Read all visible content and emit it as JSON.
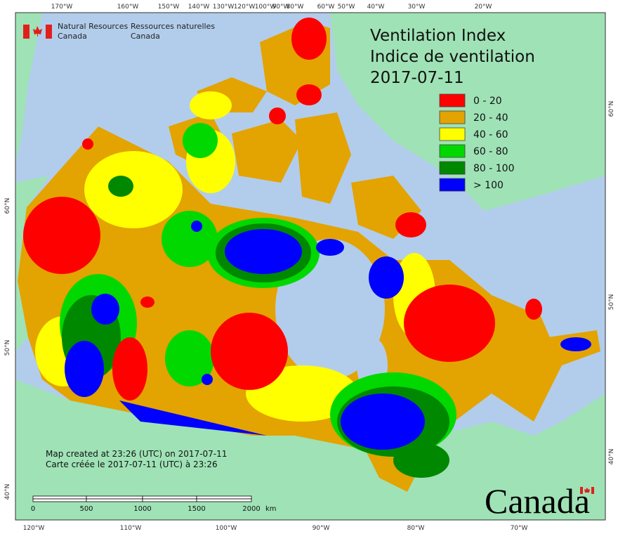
{
  "organization": {
    "english": [
      "Natural Resources",
      "Canada"
    ],
    "french": [
      "Ressources naturelles",
      "Canada"
    ]
  },
  "header": {
    "title_en": "Ventilation Index",
    "title_fr": "Indice de ventilation",
    "date": "2017-07-11"
  },
  "legend": [
    {
      "label": "0 - 20",
      "color": "#ff0000"
    },
    {
      "label": "20 - 40",
      "color": "#e3a300"
    },
    {
      "label": "40 - 60",
      "color": "#ffff00"
    },
    {
      "label": "60 - 80",
      "color": "#00d800"
    },
    {
      "label": "80 - 100",
      "color": "#008800"
    },
    {
      "label": "> 100",
      "color": "#0000ff"
    }
  ],
  "graticule": {
    "top": [
      "170°W",
      "160°W",
      "150°W",
      "140°W",
      "130°W",
      "120°W",
      "100°W",
      "90°W",
      "80°W",
      "60°W",
      "50°W",
      "40°W",
      "30°W",
      "20°W"
    ],
    "bottom": [
      "120°W",
      "110°W",
      "100°W",
      "90°W",
      "80°W",
      "70°W"
    ],
    "left": [
      "60°N",
      "50°N",
      "40°N"
    ],
    "right": [
      "60°N",
      "50°N",
      "40°N"
    ]
  },
  "credits": [
    "Map created at 23:26 (UTC) on 2017-07-11",
    "Carte créée le 2017-07-11 (UTC) à 23:26"
  ],
  "scale_bar": {
    "ticks": [
      "0",
      "500",
      "1000",
      "1500",
      "2000"
    ],
    "unit": "km"
  },
  "wordmark": "Canada"
}
